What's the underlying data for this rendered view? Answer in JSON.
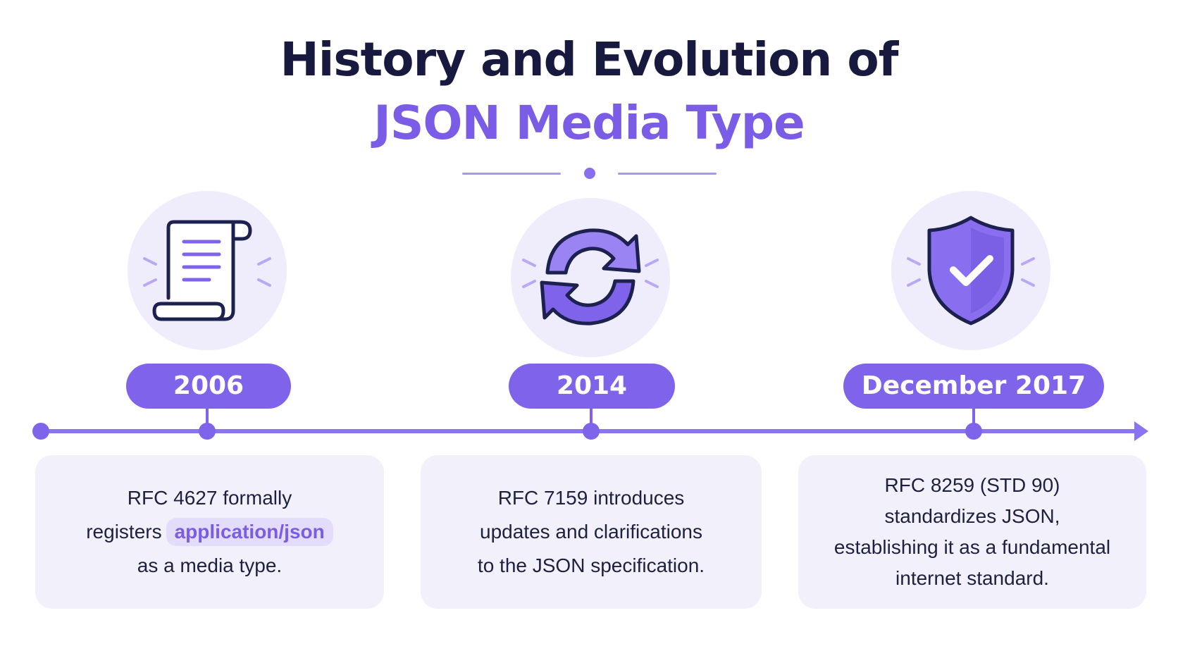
{
  "title": {
    "line1": "History and Evolution of",
    "line2": "JSON Media Type"
  },
  "colors": {
    "accent": "#7f63ea",
    "title_dark": "#17193f",
    "title_accent": "#7a5ce6",
    "card_bg": "#f2f1fb",
    "icon_bg": "#efedfb"
  },
  "milestones": [
    {
      "icon": "scroll-document-icon",
      "year": "2006",
      "text_parts": [
        "RFC 4627 formally",
        "registers",
        "application/json",
        "as a media type."
      ]
    },
    {
      "icon": "refresh-arrows-icon",
      "year": "2014",
      "text_lines": [
        "RFC 7159 introduces",
        "updates and clarifications",
        "to the JSON specification."
      ]
    },
    {
      "icon": "shield-check-icon",
      "year": "December 2017",
      "text_lines": [
        "RFC 8259 (STD 90)",
        "standardizes JSON,",
        "establishing it as a fundamental",
        "internet standard."
      ]
    }
  ]
}
